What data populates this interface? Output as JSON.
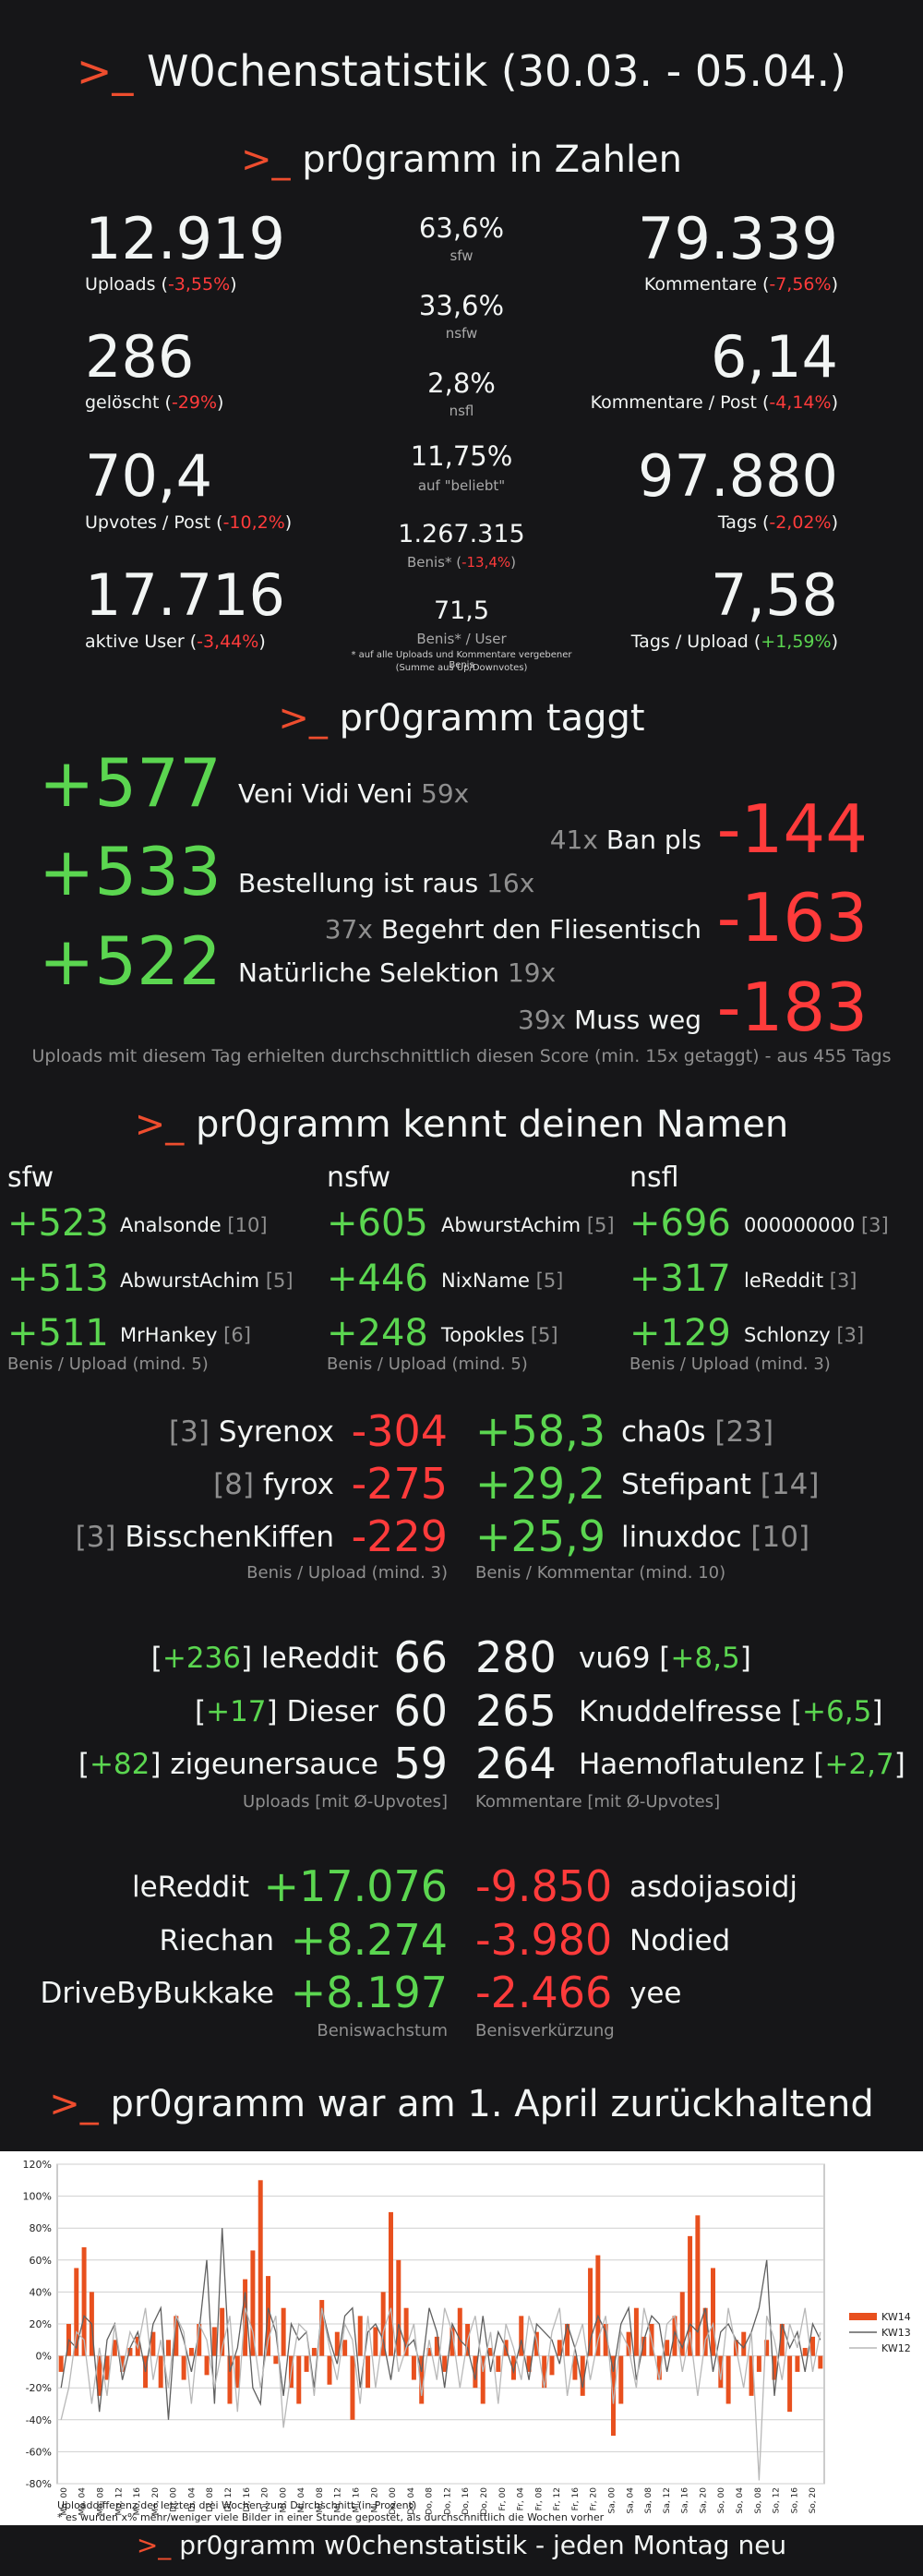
{
  "header": {
    "prompt": ">_",
    "title": "W0chenstatistik (30.03. - 05.04.)"
  },
  "zahlen": {
    "heading": "pr0gramm in Zahlen",
    "left": [
      {
        "value": "12.919",
        "label": "Uploads (",
        "change": "-3,55%",
        "end": ")"
      },
      {
        "value": "286",
        "label": "gelöscht (",
        "change": "-29%",
        "end": ")"
      },
      {
        "value": "70,4",
        "label": "Upvotes / Post (",
        "change": "-10,2%",
        "end": ")"
      },
      {
        "value": "17.716",
        "label": "aktive User (",
        "change": "-3,44%",
        "end": ")"
      }
    ],
    "middle": [
      {
        "value": "63,6%",
        "label": "sfw"
      },
      {
        "value": "33,6%",
        "label": "nsfw"
      },
      {
        "value": "2,8%",
        "label": "nsfl"
      },
      {
        "value": "11,75%",
        "label": "auf \"beliebt\""
      },
      {
        "value": "1.267.315",
        "label": "Benis* (",
        "change": "-13,4%",
        "end": ")"
      },
      {
        "value": "71,5",
        "label": "Benis* / User"
      }
    ],
    "footnote1": "* auf alle Uploads und Kommentare vergebener Benis",
    "footnote2": "(Summe aus Up/Downvotes)",
    "right": [
      {
        "value": "79.339",
        "label": "Kommentare (",
        "change": "-7,56%",
        "end": ")"
      },
      {
        "value": "6,14",
        "label": "Kommentare / Post (",
        "change": "-4,14%",
        "end": ")"
      },
      {
        "value": "97.880",
        "label": "Tags (",
        "change": "-2,02%",
        "end": ")"
      },
      {
        "value": "7,58",
        "label": "Tags / Upload (",
        "change": "+1,59%",
        "end": ")"
      }
    ]
  },
  "taggt": {
    "heading": "pr0gramm taggt",
    "positive": [
      {
        "score": "+577",
        "tag": "Veni Vidi Veni",
        "count": "59x"
      },
      {
        "score": "+533",
        "tag": "Bestellung ist raus",
        "count": "16x"
      },
      {
        "score": "+522",
        "tag": "Natürliche Selektion",
        "count": "19x"
      }
    ],
    "negative": [
      {
        "score": "-144",
        "tag": "Ban pls",
        "count": "41x"
      },
      {
        "score": "-163",
        "tag": "Begehrt den Fliesentisch",
        "count": "37x"
      },
      {
        "score": "-183",
        "tag": "Muss weg",
        "count": "39x"
      }
    ],
    "note": "Uploads mit diesem Tag erhielten durchschnittlich diesen Score (min. 15x getaggt) - aus 455 Tags"
  },
  "namen": {
    "heading": "pr0gramm kennt deinen Namen",
    "columns": [
      {
        "title": "sfw",
        "note": "Benis / Upload (mind. 5)",
        "rows": [
          {
            "score": "+523",
            "name": "Analsonde",
            "count": "[10]"
          },
          {
            "score": "+513",
            "name": "AbwurstAchim",
            "count": "[5]"
          },
          {
            "score": "+511",
            "name": "MrHankey",
            "count": "[6]"
          }
        ]
      },
      {
        "title": "nsfw",
        "note": "Benis / Upload (mind. 5)",
        "rows": [
          {
            "score": "+605",
            "name": "AbwurstAchim",
            "count": "[5]"
          },
          {
            "score": "+446",
            "name": "NixName",
            "count": "[5]"
          },
          {
            "score": "+248",
            "name": "Topokles",
            "count": "[5]"
          }
        ]
      },
      {
        "title": "nsfl",
        "note": "Benis / Upload (mind. 3)",
        "rows": [
          {
            "score": "+696",
            "name": "000000000",
            "count": "[3]"
          },
          {
            "score": "+317",
            "name": "leReddit",
            "count": "[3]"
          },
          {
            "score": "+129",
            "name": "Schlonzy",
            "count": "[3]"
          }
        ]
      }
    ],
    "worst": {
      "note": "Benis / Upload (mind. 3)",
      "rows": [
        {
          "count": "[3]",
          "name": "Syrenox",
          "score": "-304"
        },
        {
          "count": "[8]",
          "name": "fyrox",
          "score": "-275"
        },
        {
          "count": "[3]",
          "name": "BisschenKiffen",
          "score": "-229"
        }
      ]
    },
    "comments": {
      "note": "Benis / Kommentar (mind. 10)",
      "rows": [
        {
          "score": "+58,3",
          "name": "cha0s",
          "count": "[23]"
        },
        {
          "score": "+29,2",
          "name": "Stefipant",
          "count": "[14]"
        },
        {
          "score": "+25,9",
          "name": "linuxdoc",
          "count": "[10]"
        }
      ]
    },
    "uploads": {
      "note": "Uploads [mit Ø-Upvotes]",
      "rows": [
        {
          "avg": "+236",
          "name": "leReddit",
          "value": "66"
        },
        {
          "avg": "+17",
          "name": "Dieser",
          "value": "60"
        },
        {
          "avg": "+82",
          "name": "zigeunersauce",
          "value": "59"
        }
      ]
    },
    "kommentare": {
      "note": "Kommentare [mit Ø-Upvotes]",
      "rows": [
        {
          "value": "280",
          "name": "vu69",
          "avg": "+8,5"
        },
        {
          "value": "265",
          "name": "Knuddelfresse",
          "avg": "+6,5"
        },
        {
          "value": "264",
          "name": "Haemoflatulenz",
          "avg": "+2,7"
        }
      ]
    },
    "wachstum": {
      "note": "Beniswachstum",
      "rows": [
        {
          "name": "leReddit",
          "value": "+17.076"
        },
        {
          "name": "Riechan",
          "value": "+8.274"
        },
        {
          "name": "DriveByBukkake",
          "value": "+8.197"
        }
      ]
    },
    "verkuerzung": {
      "note": "Benisverkürzung",
      "rows": [
        {
          "value": "-9.850",
          "name": "asdoijasoidj"
        },
        {
          "value": "-3.980",
          "name": "Nodied"
        },
        {
          "value": "-2.466",
          "name": "yee"
        }
      ]
    }
  },
  "april": {
    "heading": "pr0gramm war am 1. April zurückhaltend"
  },
  "chart_data": {
    "type": "bar",
    "ylim": [
      -80,
      120
    ],
    "yticks": [
      "120%",
      "100%",
      "80%",
      "60%",
      "40%",
      "20%",
      "0%",
      "-20%",
      "-40%",
      "-60%",
      "-80%"
    ],
    "xlabel": "Uploaddifferenz der letzten drei Wochen zum Durchschnitt (in Prozent)",
    "footnote": "* es wurden x% mehr/weniger viele Bilder in einer Stunde gepostet, als durchschnittlich die Wochen vorher",
    "x_day_labels": [
      "Mo, 00",
      "Mo, 04",
      "Mo, 08",
      "Mo, 12",
      "Mo, 16",
      "Mo, 20",
      "Di, 00",
      "Di, 04",
      "Di, 08",
      "Di, 12",
      "Di, 16",
      "Di, 20",
      "Mi, 00",
      "Mi, 04",
      "Mi, 08",
      "Mi, 12",
      "Mi, 16",
      "Mi, 20",
      "Do, 00",
      "Do, 04",
      "Do, 08",
      "Do, 12",
      "Do, 16",
      "Do, 20",
      "Fr, 00",
      "Fr, 04",
      "Fr, 08",
      "Fr, 12",
      "Fr, 16",
      "Fr, 20",
      "Sa, 00",
      "Sa, 04",
      "Sa, 08",
      "Sa, 12",
      "Sa, 16",
      "Sa, 20",
      "So, 00",
      "So, 04",
      "So, 08",
      "So, 12",
      "So, 16",
      "So, 20"
    ],
    "legend": [
      {
        "name": "KW14",
        "color": "#e8501e",
        "kind": "bar"
      },
      {
        "name": "KW13",
        "color": "#606060",
        "kind": "line"
      },
      {
        "name": "KW12",
        "color": "#b8b8b8",
        "kind": "line"
      }
    ],
    "series": [
      {
        "name": "KW14",
        "values": [
          -10,
          20,
          55,
          68,
          40,
          -25,
          -15,
          10,
          -10,
          5,
          12,
          -20,
          15,
          -20,
          10,
          25,
          -15,
          5,
          20,
          -12,
          18,
          30,
          -30,
          -20,
          48,
          66,
          110,
          50,
          -5,
          30,
          -20,
          -30,
          -10,
          5,
          35,
          -18,
          15,
          10,
          -40,
          25,
          -20,
          18,
          40,
          90,
          60,
          30,
          -15,
          -30,
          5,
          12,
          -10,
          18,
          30,
          20,
          -20,
          -30,
          5,
          -10,
          10,
          -15,
          25,
          -10,
          15,
          -20,
          -12,
          10,
          20,
          -15,
          -25,
          55,
          63,
          20,
          -50,
          -30,
          15,
          30,
          12,
          20,
          -15,
          10,
          25,
          40,
          75,
          88,
          30,
          55,
          -20,
          -30,
          10,
          15,
          -25,
          -10,
          10,
          -15,
          20,
          -35,
          -10,
          5,
          12,
          -8
        ]
      },
      {
        "name": "KW13",
        "values": [
          -20,
          10,
          5,
          25,
          20,
          -35,
          10,
          20,
          -15,
          5,
          15,
          -10,
          20,
          30,
          -40,
          25,
          10,
          -10,
          15,
          60,
          -30,
          80,
          -10,
          5,
          40,
          -20,
          -30,
          30,
          15,
          -25,
          20,
          10,
          15,
          -20,
          30,
          10,
          -5,
          25,
          30,
          -20,
          15,
          20,
          10,
          -15,
          20,
          5,
          10,
          -10,
          30,
          15,
          -20,
          20,
          10,
          5,
          -15,
          25,
          -10,
          15,
          5,
          -10,
          10,
          -15,
          20,
          15,
          10,
          -5,
          20,
          5,
          -20,
          10,
          25,
          15,
          -10,
          20,
          30,
          -15,
          10,
          25,
          20,
          -10,
          15,
          5,
          20,
          15,
          30,
          -10,
          15,
          20,
          10,
          5,
          15,
          30,
          60,
          -25,
          20,
          5,
          15,
          -10,
          20,
          10
        ]
      },
      {
        "name": "KW12",
        "values": [
          -40,
          -20,
          15,
          10,
          -30,
          5,
          -25,
          20,
          -10,
          15,
          5,
          30,
          -15,
          10,
          -20,
          25,
          15,
          -30,
          20,
          10,
          -20,
          5,
          25,
          -35,
          30,
          15,
          -20,
          10,
          25,
          -45,
          -10,
          20,
          15,
          -25,
          30,
          5,
          -15,
          20,
          10,
          -30,
          25,
          -20,
          15,
          30,
          -10,
          5,
          20,
          -25,
          10,
          -15,
          30,
          15,
          -20,
          10,
          25,
          -10,
          15,
          -30,
          20,
          5,
          -15,
          25,
          10,
          -20,
          15,
          30,
          -25,
          5,
          20,
          -15,
          10,
          25,
          -30,
          15,
          5,
          -20,
          30,
          10,
          -15,
          20,
          25,
          -10,
          15,
          -25,
          10,
          20,
          -15,
          30,
          5,
          -20,
          15,
          -78,
          25,
          10,
          -15,
          20,
          5,
          30,
          -10,
          15
        ]
      }
    ]
  },
  "footer": {
    "text": "pr0gramm w0chenstatistik - jeden Montag neu"
  }
}
